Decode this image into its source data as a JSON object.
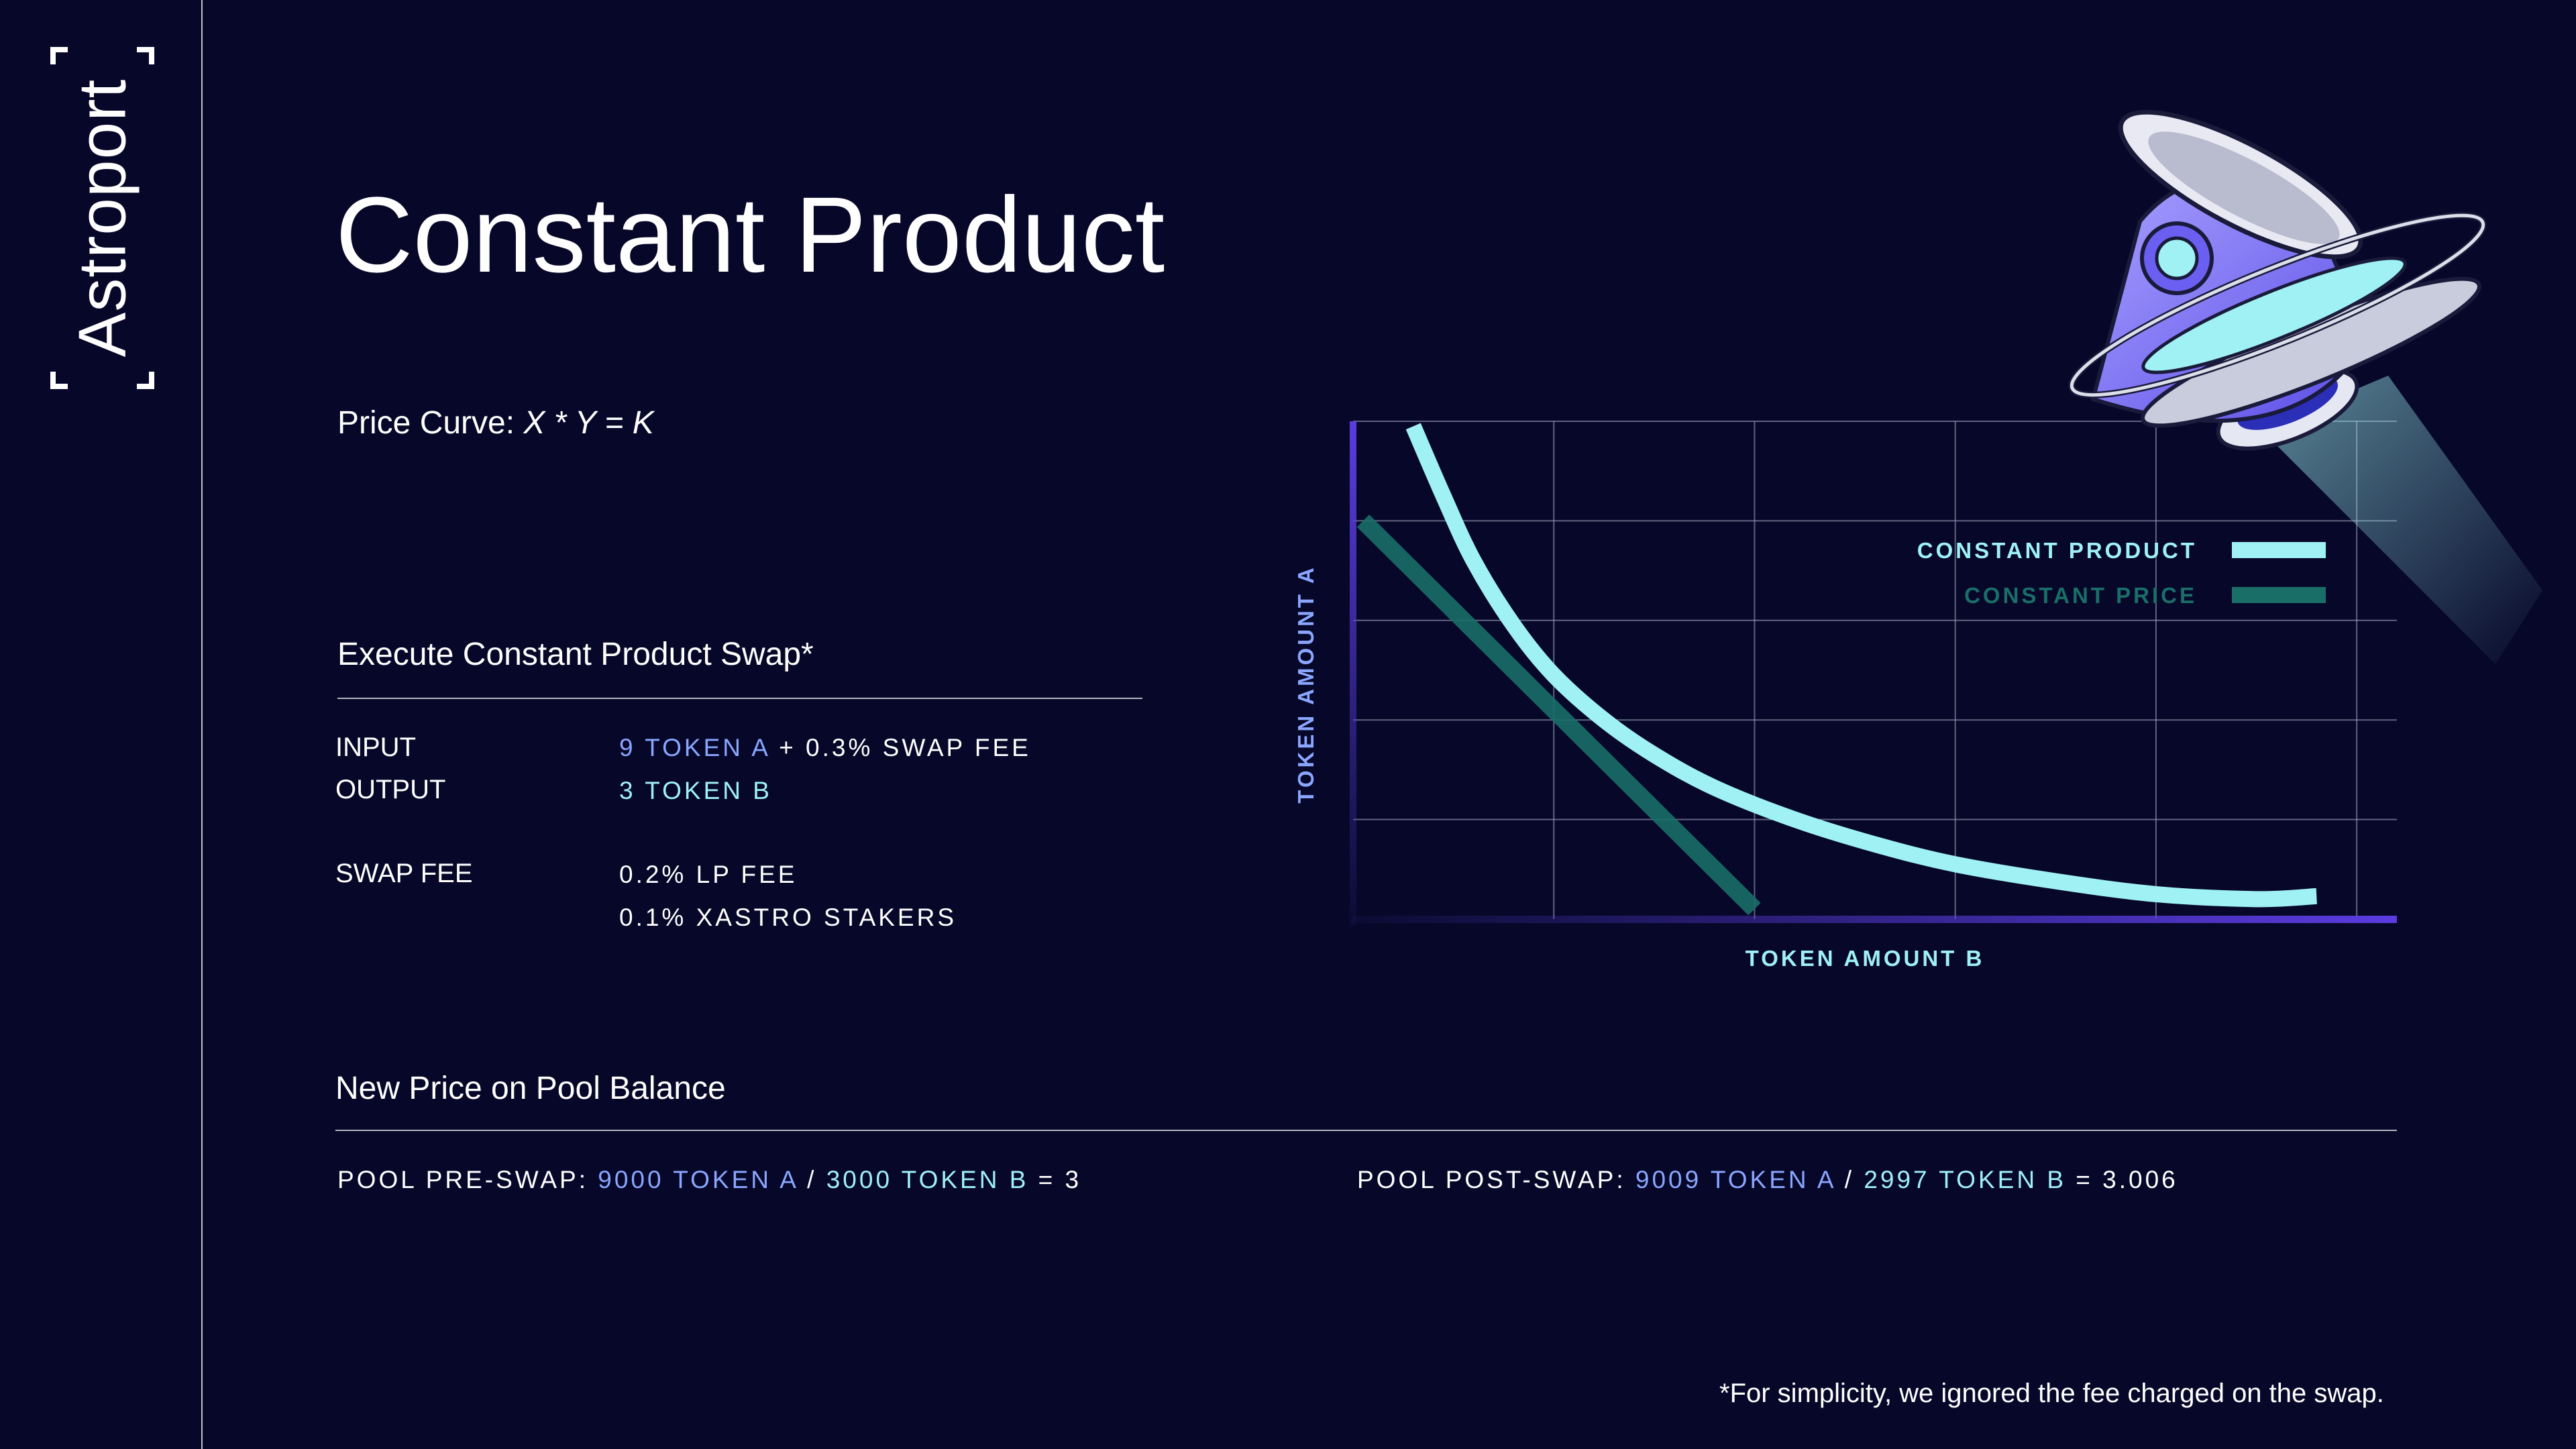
{
  "brand": {
    "name": "Astroport"
  },
  "title": "Constant Product",
  "price_curve": {
    "label": "Price Curve: ",
    "formula": "X * Y = K"
  },
  "swap": {
    "heading": "Execute Constant Product Swap*",
    "input_label": "INPUT",
    "input_amount": "9 TOKEN A",
    "input_fee": " + 0.3% SWAP FEE",
    "output_label": "OUTPUT",
    "output_amount": "3 TOKEN B",
    "fee_label": "SWAP FEE",
    "fee_lp": "0.2% LP FEE",
    "fee_stakers": "0.1% XASTRO STAKERS"
  },
  "pool": {
    "heading": "New Price on Pool Balance",
    "pre_label": "POOL PRE-SWAP: ",
    "pre_a": "9000 TOKEN A",
    "pre_sep": "  / ",
    "pre_b": "3000 TOKEN B",
    "pre_result": " = 3",
    "post_label": "POOL POST-SWAP: ",
    "post_a": "9009 TOKEN A",
    "post_sep": "  / ",
    "post_b": "2997 TOKEN B",
    "post_result": " = 3.006"
  },
  "footnote": "*For simplicity, we ignored the fee charged on the swap.",
  "colors": {
    "background": "#070829",
    "constant_product": "#9ff1f4",
    "constant_price": "#1a6e68",
    "axis": "#5a3ce0",
    "token_a_text": "#8aa6ff",
    "token_b_text": "#9ff1f4",
    "grid": "#9aa0b8"
  },
  "illustration": {
    "icon": "spaceship-icon"
  },
  "chart_data": {
    "type": "line",
    "xlabel": "TOKEN AMOUNT B",
    "ylabel": "TOKEN AMOUNT A",
    "grid": true,
    "legend_placement": "top-right",
    "xlim": [
      0,
      5.2
    ],
    "ylim": [
      0,
      5
    ],
    "series": [
      {
        "name": "CONSTANT PRODUCT",
        "color": "#9ff1f4",
        "x": [
          0.3,
          0.45,
          0.6,
          0.8,
          1.0,
          1.25,
          1.5,
          1.8,
          2.2,
          2.6,
          3.0,
          3.5,
          4.0,
          4.5,
          4.8
        ],
        "y": [
          4.95,
          4.25,
          3.6,
          2.95,
          2.45,
          2.0,
          1.65,
          1.32,
          1.0,
          0.75,
          0.55,
          0.38,
          0.25,
          0.2,
          0.23
        ]
      },
      {
        "name": "CONSTANT PRICE",
        "color": "#1a6e68",
        "x": [
          0.05,
          2.0
        ],
        "y": [
          4.0,
          0.1
        ]
      }
    ]
  }
}
